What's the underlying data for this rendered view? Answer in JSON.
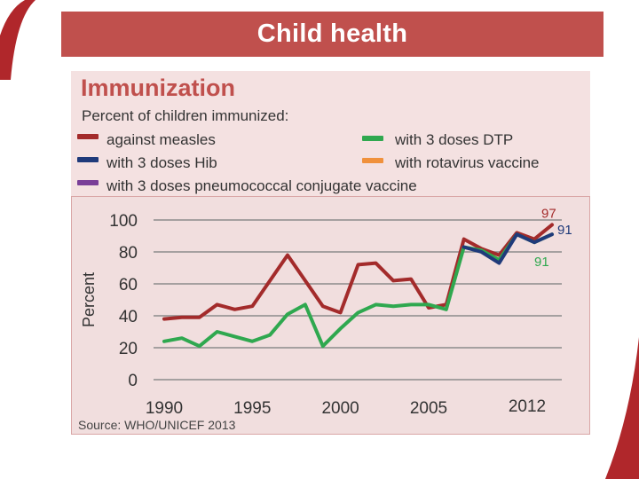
{
  "slide": {
    "title": "Child health",
    "panel_heading": "Immunization",
    "source": "Source: WHO/UNICEF 2013"
  },
  "chart_data": {
    "type": "line",
    "title": "Immunization",
    "subtitle": "Percent of children immunized:",
    "xlabel": "",
    "ylabel": "Percent",
    "ylim": [
      0,
      100
    ],
    "xlim": [
      1990,
      2012
    ],
    "yticks": [
      "0",
      "20",
      "40",
      "60",
      "80",
      "100"
    ],
    "xticks": [
      "1990",
      "1995",
      "2000",
      "2005",
      "2012"
    ],
    "grid": true,
    "legend_position": "top",
    "series": [
      {
        "key": "measles",
        "name": "against measles",
        "color": "#a32b2b",
        "x": [
          1990,
          1991,
          1992,
          1993,
          1994,
          1995,
          1996,
          1997,
          1998,
          1999,
          2000,
          2001,
          2002,
          2003,
          2004,
          2005,
          2006,
          2007,
          2008,
          2009,
          2010,
          2011,
          2012
        ],
        "values": [
          38,
          39,
          39,
          47,
          44,
          46,
          62,
          78,
          62,
          46,
          42,
          72,
          73,
          62,
          63,
          45,
          47,
          88,
          82,
          78,
          92,
          88,
          97
        ]
      },
      {
        "key": "dtp3",
        "name": "with 3 doses DTP",
        "color": "#2fa84f",
        "x": [
          1990,
          1991,
          1992,
          1993,
          1994,
          1995,
          1996,
          1997,
          1998,
          1999,
          2000,
          2001,
          2002,
          2003,
          2004,
          2005,
          2006,
          2007,
          2008,
          2009,
          2010,
          2011,
          2012
        ],
        "values": [
          24,
          26,
          21,
          30,
          27,
          24,
          28,
          41,
          47,
          21,
          32,
          42,
          47,
          46,
          47,
          47,
          44,
          83,
          81,
          75,
          91,
          86,
          91
        ]
      },
      {
        "key": "hib3",
        "name": "with 3 doses Hib",
        "color": "#1f3a7a",
        "x": [
          2007,
          2008,
          2009,
          2010,
          2011,
          2012
        ],
        "values": [
          83,
          80,
          73,
          91,
          86,
          91
        ]
      },
      {
        "key": "rota",
        "name": "with rotavirus vaccine",
        "color": "#f0913c",
        "x": [],
        "values": []
      },
      {
        "key": "pcv3",
        "name": "with 3 doses pneumococcal conjugate vaccine",
        "color": "#7a3f98",
        "x": [],
        "values": []
      }
    ],
    "end_labels": [
      {
        "series": "measles",
        "text": "97"
      },
      {
        "series": "hib3",
        "text": "91"
      },
      {
        "series": "dtp3",
        "text": "91"
      }
    ]
  }
}
